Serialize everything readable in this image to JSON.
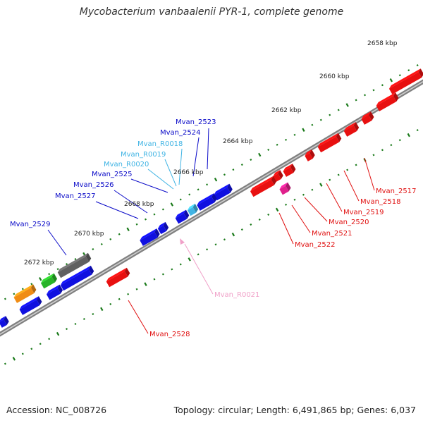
{
  "title": "Mycobacterium vanbaalenii PYR-1, complete genome",
  "footer": {
    "accession": "Accession: NC_008726",
    "summary": "Topology: circular; Length: 6,491,865 bp; Genes: 6,037"
  },
  "colors": {
    "forward_cds": "#1010e0",
    "reverse_cds": "#e81010",
    "rna": "#40b4e4",
    "orange_feature": "#f08c14",
    "green_feature": "#28b428",
    "gray_feature": "#606060",
    "magenta_feature": "#e0208c",
    "pink_rna": "#f0a0c8",
    "tick": "#1a7a1a",
    "backbone": "#808080"
  },
  "ruler_labels": [
    {
      "text": "2658 kbp"
    },
    {
      "text": "2660 kbp"
    },
    {
      "text": "2662 kbp"
    },
    {
      "text": "2664 kbp"
    },
    {
      "text": "2666 kbp"
    },
    {
      "text": "2668 kbp"
    },
    {
      "text": "2670 kbp"
    },
    {
      "text": "2672 kbp"
    }
  ],
  "gene_labels": [
    {
      "text": "Mvan_2523",
      "kind": "forward"
    },
    {
      "text": "Mvan_2524",
      "kind": "forward"
    },
    {
      "text": "Mvan_R0018",
      "kind": "rna"
    },
    {
      "text": "Mvan_R0019",
      "kind": "rna"
    },
    {
      "text": "Mvan_R0020",
      "kind": "rna"
    },
    {
      "text": "Mvan_2525",
      "kind": "forward"
    },
    {
      "text": "Mvan_2526",
      "kind": "forward"
    },
    {
      "text": "Mvan_2527",
      "kind": "forward"
    },
    {
      "text": "Mvan_2529",
      "kind": "forward"
    },
    {
      "text": "Mvan_2517",
      "kind": "reverse"
    },
    {
      "text": "Mvan_2518",
      "kind": "reverse"
    },
    {
      "text": "Mvan_2519",
      "kind": "reverse"
    },
    {
      "text": "Mvan_2520",
      "kind": "reverse"
    },
    {
      "text": "Mvan_2521",
      "kind": "reverse"
    },
    {
      "text": "Mvan_2522",
      "kind": "reverse"
    },
    {
      "text": "Mvan_R0021",
      "kind": "pink"
    },
    {
      "text": "Mvan_2528",
      "kind": "reverse"
    }
  ]
}
